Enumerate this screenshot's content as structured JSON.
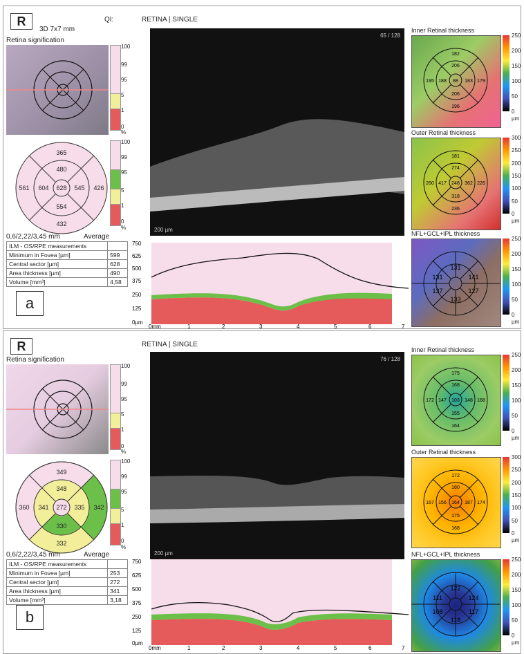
{
  "panel_a": {
    "eye": "R",
    "scan_type": "3D  7x7 mm",
    "qi_label": "QI:",
    "mode_label": "RETINA | SINGLE",
    "retina_signification": "Retina signification",
    "frame_counter": "65 / 128",
    "scale_bar": "200 µm",
    "grid_label": "0,6/2,22/3,45 mm",
    "average_label": "Average",
    "caption": "a",
    "legend_ticks_top": [
      "100",
      "99",
      "95"
    ],
    "legend_ticks_bottom": [
      "5",
      "1",
      "0",
      "%"
    ],
    "legend2_ticks": [
      "100",
      "99",
      "95",
      "5",
      "1",
      "0",
      "%"
    ],
    "sectors": {
      "outer_top": "365",
      "inner_top": "480",
      "outer_left": "561",
      "inner_left": "604",
      "center": "628",
      "inner_right": "545",
      "outer_right": "426",
      "inner_bottom": "554",
      "outer_bottom": "432"
    },
    "measurements": {
      "title": "ILM - OS/RPE measurements",
      "rows": [
        {
          "label": "Minimum in Fovea [µm]",
          "value": "599"
        },
        {
          "label": "Central sector [µm]",
          "value": "628"
        },
        {
          "label": "Area thickness [µm]",
          "value": "490"
        },
        {
          "label": "Volume [mm³]",
          "value": "4,58"
        }
      ]
    },
    "maps": [
      {
        "title": "Inner Retinal thickness",
        "scale": [
          "250",
          "200",
          "150",
          "100",
          "50",
          "0",
          "µm"
        ],
        "values": [
          "182",
          "206",
          "195",
          "188",
          "88",
          "183",
          "179",
          "206",
          "196"
        ]
      },
      {
        "title": "Outer Retinal thickness",
        "scale": [
          "300",
          "250",
          "200",
          "150",
          "100",
          "50",
          "0",
          "µm"
        ],
        "values": [
          "181",
          "274",
          "260",
          "417",
          "248",
          "362",
          "226",
          "318",
          "236"
        ]
      },
      {
        "title": "NFL+GCL+IPL thickness",
        "scale": [
          "250",
          "200",
          "150",
          "100",
          "50",
          "0",
          "µm"
        ],
        "values": [
          "131",
          "131",
          "141",
          "137",
          "127",
          "133"
        ]
      }
    ],
    "profile": {
      "y_ticks": [
        "750",
        "625",
        "500",
        "375",
        "250",
        "125",
        "0µm"
      ],
      "x_ticks": [
        "0mm",
        "1",
        "2",
        "3",
        "4",
        "5",
        "6",
        "7"
      ]
    }
  },
  "panel_b": {
    "eye": "R",
    "mode_label": "RETINA | SINGLE",
    "retina_signification": "Retina signification",
    "frame_counter": "76 / 128",
    "scale_bar": "200 µm",
    "grid_label": "0,6/2,22/3,45 mm",
    "average_label": "Average",
    "caption": "b",
    "legend_ticks_top": [
      "100",
      "99",
      "95"
    ],
    "legend_ticks_bottom": [
      "5",
      "1",
      "0",
      "%"
    ],
    "legend2_ticks": [
      "100",
      "99",
      "95",
      "5",
      "1",
      "0",
      "%"
    ],
    "sectors": {
      "outer_top": "349",
      "inner_top": "348",
      "outer_left": "360",
      "inner_left": "341",
      "center": "272",
      "inner_right": "335",
      "outer_right": "342",
      "inner_bottom": "330",
      "outer_bottom": "332"
    },
    "measurements": {
      "title": "ILM - OS/RPE measurements",
      "rows": [
        {
          "label": "Minimum in Fovea [µm]",
          "value": "253"
        },
        {
          "label": "Central sector [µm]",
          "value": "272"
        },
        {
          "label": "Area thickness [µm]",
          "value": "341"
        },
        {
          "label": "Volume [mm³]",
          "value": "3,18"
        }
      ]
    },
    "maps": [
      {
        "title": "Inner Retinal thickness",
        "scale": [
          "250",
          "200",
          "150",
          "100",
          "50",
          "0",
          "µm"
        ],
        "values": [
          "175",
          "168",
          "172",
          "147",
          "103",
          "148",
          "168",
          "155",
          "164"
        ]
      },
      {
        "title": "Outer Retinal thickness",
        "scale": [
          "300",
          "250",
          "200",
          "150",
          "100",
          "50",
          "0",
          "µm"
        ],
        "values": [
          "172",
          "180",
          "167",
          "156",
          "164",
          "187",
          "174",
          "175",
          "168"
        ]
      },
      {
        "title": "NFL+GCL+IPL thickness",
        "scale": [
          "250",
          "200",
          "150",
          "100",
          "50",
          "0",
          "µm"
        ],
        "values": [
          "122",
          "111",
          "124",
          "108",
          "117",
          "118"
        ]
      }
    ],
    "profile": {
      "y_ticks": [
        "750",
        "625",
        "500",
        "375",
        "250",
        "125",
        "0µm"
      ],
      "x_ticks": [
        "0mm",
        "1",
        "2",
        "3",
        "4",
        "5",
        "6",
        "7"
      ]
    }
  }
}
